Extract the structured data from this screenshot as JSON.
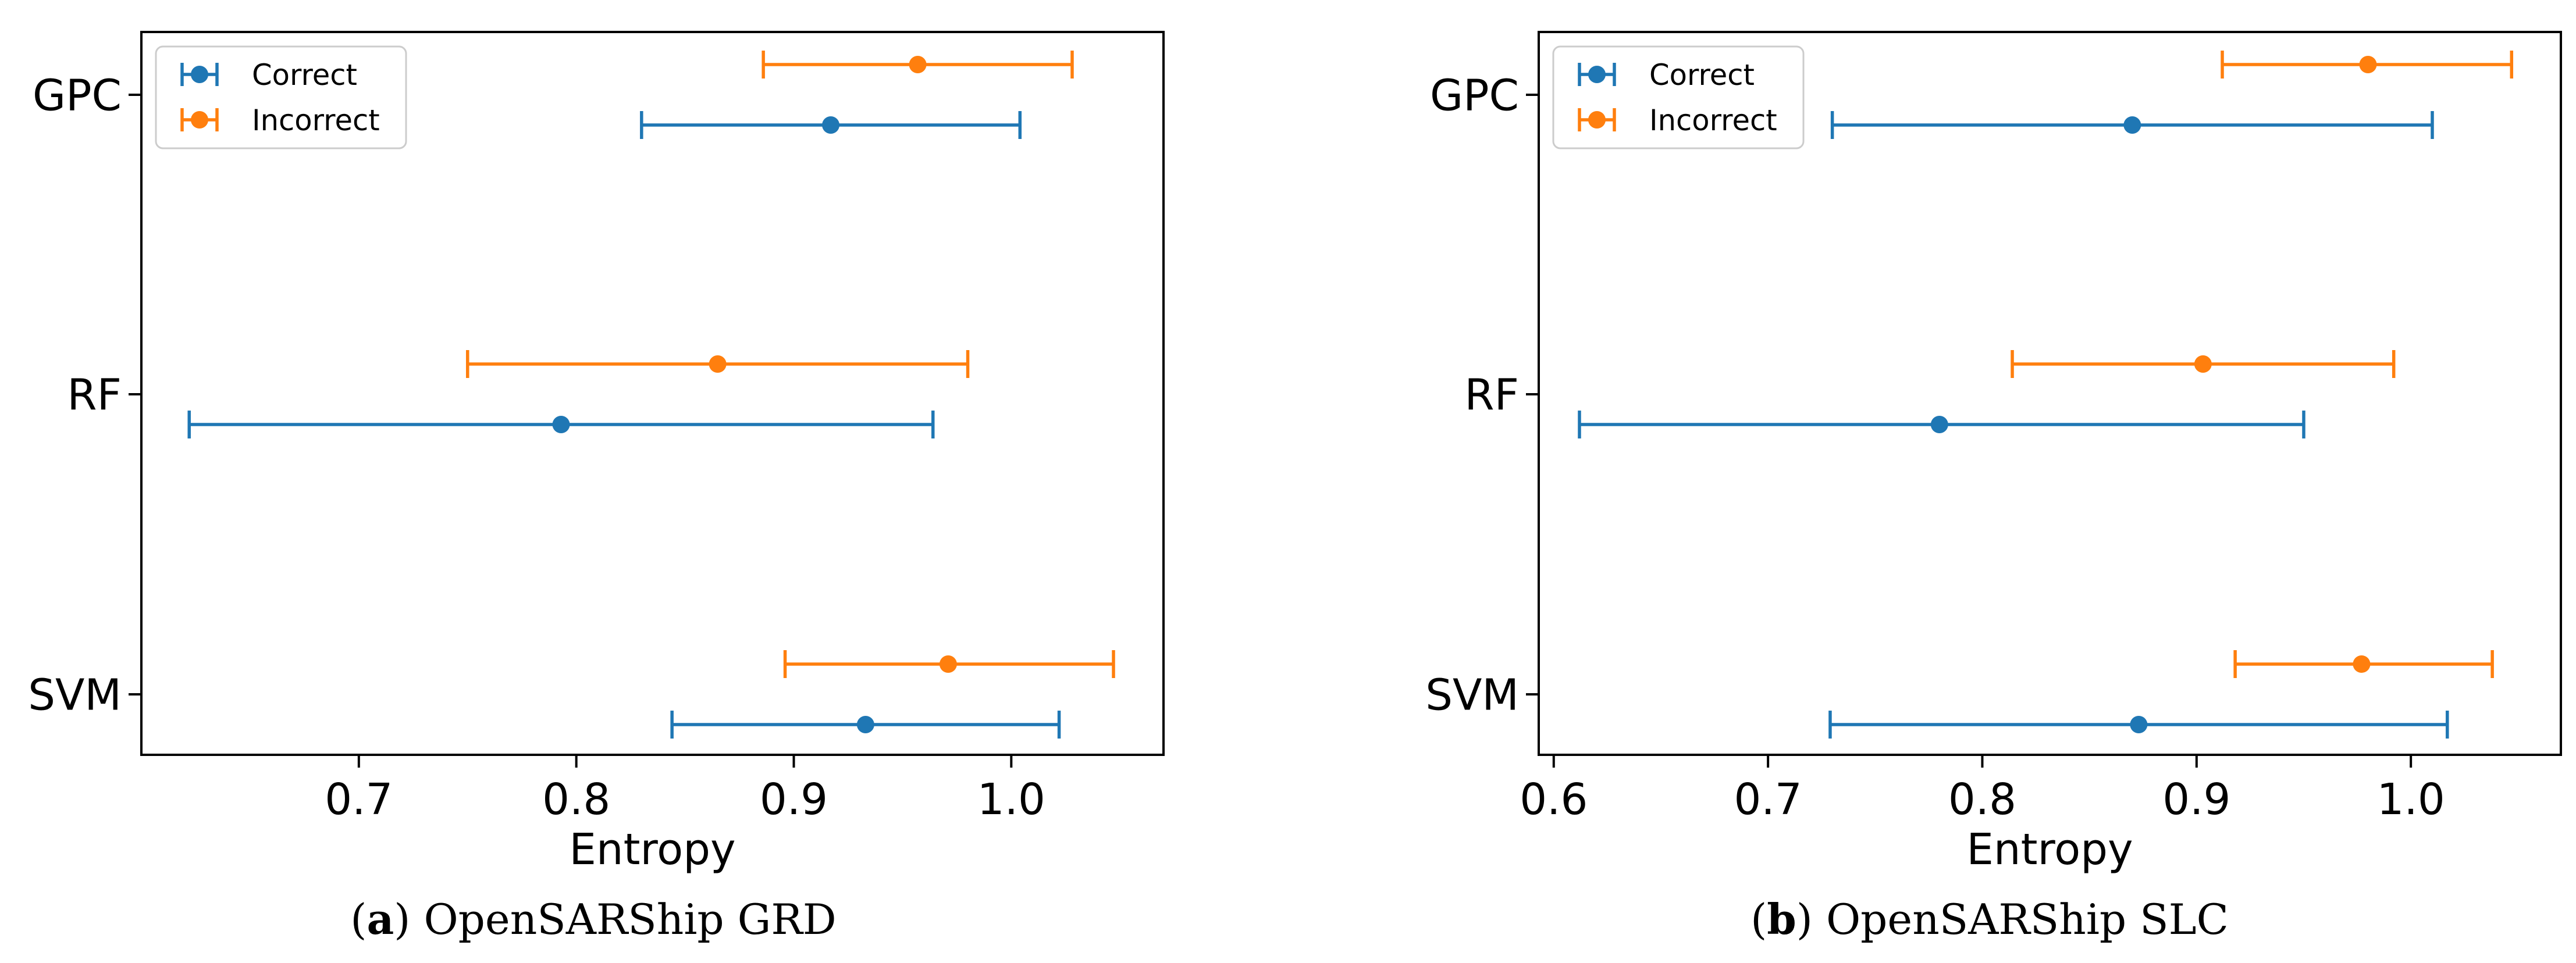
{
  "colors": {
    "correct": "#1f77b4",
    "incorrect": "#ff7f0e",
    "axis": "#000000",
    "legend_border": "#cccccc"
  },
  "chart_data": [
    {
      "type": "errorbar",
      "panel": "a",
      "caption_label": "(a)",
      "caption_label_bold": "a",
      "caption_text": "OpenSARShip GRD",
      "xlabel": "Entropy",
      "ylabel": "",
      "xlim": [
        0.6,
        1.07
      ],
      "xticks": [
        0.7,
        0.8,
        0.9,
        1.0
      ],
      "xtick_labels": [
        "0.7",
        "0.8",
        "0.9",
        "1.0"
      ],
      "categories": [
        "GPC",
        "RF",
        "SVM"
      ],
      "legend": [
        "Correct",
        "Incorrect"
      ],
      "legend_position": "top-left",
      "series": [
        {
          "name": "Correct",
          "color_key": "correct",
          "points": [
            {
              "category": "GPC",
              "mean": 0.917,
              "low": 0.83,
              "high": 1.004
            },
            {
              "category": "RF",
              "mean": 0.793,
              "low": 0.622,
              "high": 0.964
            },
            {
              "category": "SVM",
              "mean": 0.933,
              "low": 0.844,
              "high": 1.022
            }
          ]
        },
        {
          "name": "Incorrect",
          "color_key": "incorrect",
          "points": [
            {
              "category": "GPC",
              "mean": 0.957,
              "low": 0.886,
              "high": 1.028
            },
            {
              "category": "RF",
              "mean": 0.865,
              "low": 0.75,
              "high": 0.98
            },
            {
              "category": "SVM",
              "mean": 0.971,
              "low": 0.896,
              "high": 1.047
            }
          ]
        }
      ]
    },
    {
      "type": "errorbar",
      "panel": "b",
      "caption_label": "(b)",
      "caption_label_bold": "b",
      "caption_text": "OpenSARShip SLC",
      "xlabel": "Entropy",
      "ylabel": "",
      "xlim": [
        0.593,
        1.07
      ],
      "xticks": [
        0.6,
        0.7,
        0.8,
        0.9,
        1.0
      ],
      "xtick_labels": [
        "0.6",
        "0.7",
        "0.8",
        "0.9",
        "1.0"
      ],
      "categories": [
        "GPC",
        "RF",
        "SVM"
      ],
      "legend": [
        "Correct",
        "Incorrect"
      ],
      "legend_position": "top-left",
      "series": [
        {
          "name": "Correct",
          "color_key": "correct",
          "points": [
            {
              "category": "GPC",
              "mean": 0.87,
              "low": 0.73,
              "high": 1.01
            },
            {
              "category": "RF",
              "mean": 0.78,
              "low": 0.612,
              "high": 0.95
            },
            {
              "category": "SVM",
              "mean": 0.873,
              "low": 0.729,
              "high": 1.017
            }
          ]
        },
        {
          "name": "Incorrect",
          "color_key": "incorrect",
          "points": [
            {
              "category": "GPC",
              "mean": 0.98,
              "low": 0.912,
              "high": 1.047
            },
            {
              "category": "RF",
              "mean": 0.903,
              "low": 0.814,
              "high": 0.992
            },
            {
              "category": "SVM",
              "mean": 0.977,
              "low": 0.918,
              "high": 1.038
            }
          ]
        }
      ]
    }
  ]
}
